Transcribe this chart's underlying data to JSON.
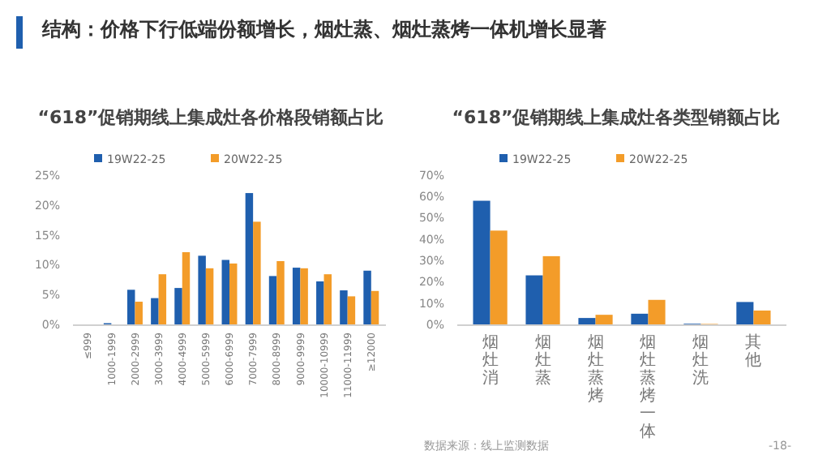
{
  "chart_data": [
    {
      "type": "bar",
      "title": "“618”促销期线上集成灶各价格段销额占比",
      "annotations": [
        "结构：价格下行低端份额增长，烟灶蒸、烟灶蒸烤一体机增长显著",
        "数据来源：线上监测数据",
        "-18-"
      ],
      "categories": [
        "≤999",
        "1000-1999",
        "2000-2999",
        "3000-3999",
        "4000-4999",
        "5000-5999",
        "6000-6999",
        "7000-7999",
        "8000-8999",
        "9000-9999",
        "10000-10999",
        "11000-11999",
        "≥12000"
      ],
      "series": [
        {
          "name": "19W22-25",
          "color": "#1f5fae",
          "values": [
            0,
            0.2,
            5.8,
            4.4,
            6.1,
            11.5,
            10.8,
            22.0,
            8.1,
            9.5,
            7.2,
            5.7,
            9.0
          ]
        },
        {
          "name": "20W22-25",
          "color": "#f39c29",
          "values": [
            0,
            0,
            3.8,
            8.4,
            12.1,
            9.4,
            10.2,
            17.2,
            10.6,
            9.4,
            8.4,
            4.7,
            5.6
          ]
        }
      ],
      "ylim": [
        0,
        25
      ],
      "yticks": [
        {
          "value": 0,
          "label": "0%"
        },
        {
          "value": 5,
          "label": "5%"
        },
        {
          "value": 10,
          "label": "10%"
        },
        {
          "value": 15,
          "label": "15%"
        },
        {
          "value": 20,
          "label": "20%"
        },
        {
          "value": 25,
          "label": "25%"
        }
      ],
      "legend": "top",
      "grid": false
    },
    {
      "type": "bar",
      "title": "“618”促销期线上集成灶各类型销额占比",
      "categories": [
        "烟灶消",
        "烟灶蒸",
        "烟灶蒸烤",
        "烟灶蒸烤一体",
        "烟灶洗",
        "其他"
      ],
      "series": [
        {
          "name": "19W22-25",
          "color": "#1f5fae",
          "values": [
            58,
            23,
            3,
            5,
            0.3,
            10.5
          ]
        },
        {
          "name": "20W22-25",
          "color": "#f39c29",
          "values": [
            44,
            32,
            4.5,
            11.5,
            0.2,
            6.5
          ]
        }
      ],
      "ylim": [
        0,
        70
      ],
      "yticks": [
        {
          "value": 0,
          "label": "0%"
        },
        {
          "value": 10,
          "label": "10%"
        },
        {
          "value": 20,
          "label": "20%"
        },
        {
          "value": 30,
          "label": "30%"
        },
        {
          "value": 40,
          "label": "40%"
        },
        {
          "value": 50,
          "label": "50%"
        },
        {
          "value": 60,
          "label": "60%"
        },
        {
          "value": 70,
          "label": "70%"
        }
      ],
      "legend": "top",
      "grid": false
    }
  ]
}
